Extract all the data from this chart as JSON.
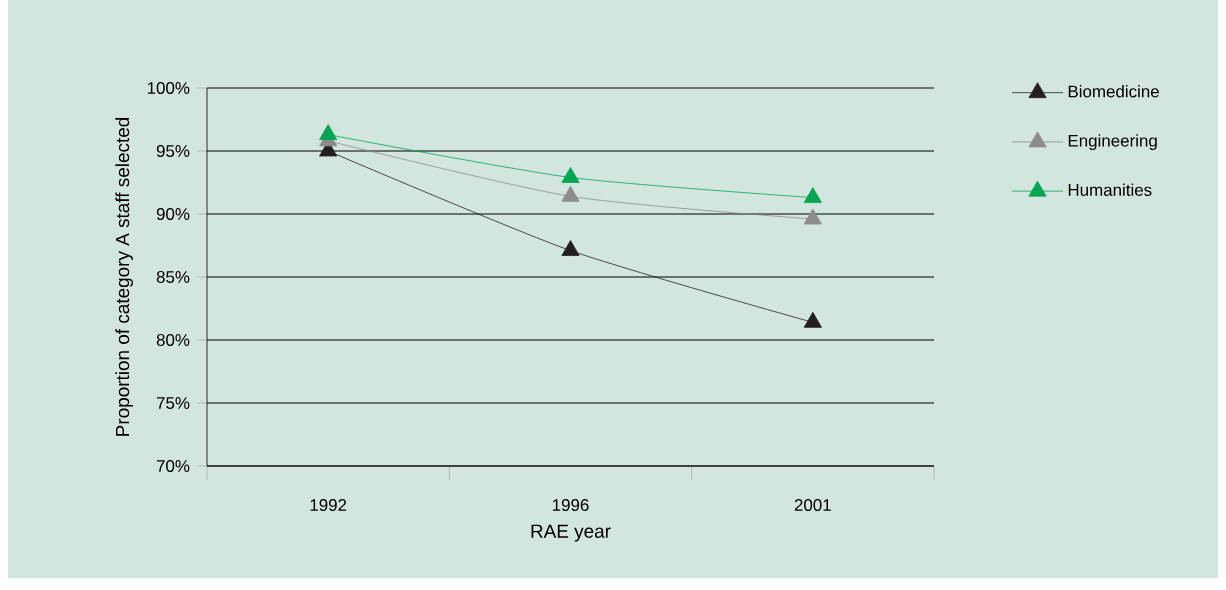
{
  "chart_data": {
    "type": "line",
    "xlabel": "RAE year",
    "ylabel": "Proportion of category A staff selected",
    "categories": [
      "1992",
      "1996",
      "2001"
    ],
    "series": [
      {
        "name": "Biomedicine",
        "color": "#231f20",
        "values": [
          95.0,
          87.1,
          81.4
        ]
      },
      {
        "name": "Engineering",
        "color": "#8c8c8c",
        "values": [
          95.8,
          91.4,
          89.6
        ]
      },
      {
        "name": "Humanities",
        "color": "#00a651",
        "values": [
          96.3,
          92.9,
          91.3
        ]
      }
    ],
    "ylim": [
      70,
      100
    ],
    "yticks": [
      {
        "value": 70,
        "label": "70%"
      },
      {
        "value": 75,
        "label": "75%"
      },
      {
        "value": 80,
        "label": "80%"
      },
      {
        "value": 85,
        "label": "85%"
      },
      {
        "value": 90,
        "label": "90%"
      },
      {
        "value": 95,
        "label": "95%"
      },
      {
        "value": 100,
        "label": "100%"
      }
    ],
    "grid": "y",
    "legend": "right",
    "marker": "triangle",
    "line_style": "solid"
  }
}
